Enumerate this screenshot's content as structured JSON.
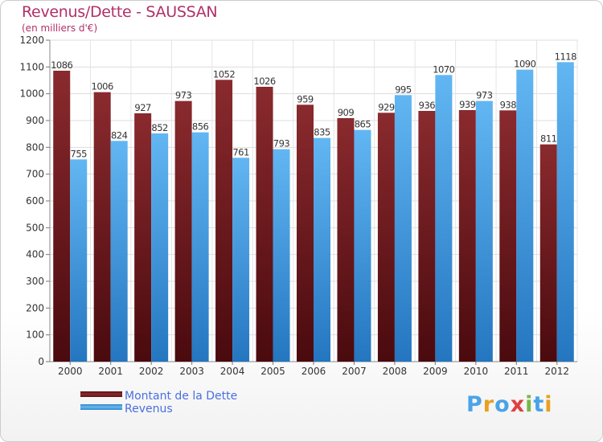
{
  "chart_data": {
    "type": "bar",
    "title": "Revenus/Dette - SAUSSAN",
    "subtitle": "(en milliers d'€)",
    "categories": [
      "2000",
      "2001",
      "2002",
      "2003",
      "2004",
      "2005",
      "2006",
      "2007",
      "2008",
      "2009",
      "2010",
      "2011",
      "2012"
    ],
    "series": [
      {
        "name": "Montant de la Dette",
        "color": "#7a1e22",
        "values": [
          1086,
          1006,
          927,
          973,
          1052,
          1026,
          959,
          909,
          929,
          936,
          939,
          938,
          811
        ]
      },
      {
        "name": "Revenus",
        "color": "#4aa3e8",
        "values": [
          755,
          824,
          852,
          856,
          761,
          793,
          835,
          865,
          995,
          1070,
          973,
          1090,
          1118
        ]
      }
    ],
    "ylim": [
      0,
      1200
    ],
    "yticks": [
      0,
      100,
      200,
      300,
      400,
      500,
      600,
      700,
      800,
      900,
      1000,
      1100,
      1200
    ],
    "grid": true,
    "legend": "bottom-left"
  },
  "logo": {
    "letters": [
      "P",
      "r",
      "o",
      "x",
      "i",
      "t",
      "i"
    ],
    "colors": [
      "#4aa3e8",
      "#e8a020",
      "#4aa3e8",
      "#e04040",
      "#7ab648",
      "#4aa3e8",
      "#e8a020"
    ]
  }
}
